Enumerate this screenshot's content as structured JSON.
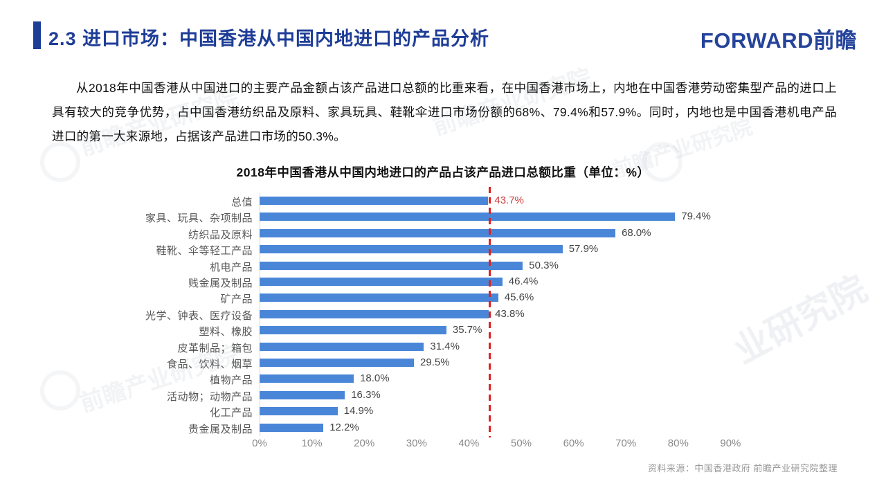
{
  "header": {
    "title": "2.3 进口市场：中国香港从中国内地进口的产品分析",
    "logo_text": "FORWARD前瞻"
  },
  "body_text": {
    "paragraph": "从2018年中国香港从中国进口的主要产品金额占该产品进口总额的比重来看，在中国香港市场上，内地在中国香港劳动密集型产品的进口上具有较大的竞争优势，占中国香港纺织品及原料、家具玩具、鞋靴伞进口市场份额的68%、79.4%和57.9%。同时，内地也是中国香港机电产品进口的第一大来源地，占据该产品进口市场的50.3%。"
  },
  "chart_data": {
    "type": "bar",
    "orientation": "horizontal",
    "title": "2018年中国香港从中国内地进口的产品占该产品进口总额比重（单位：%）",
    "categories": [
      "总值",
      "家具、玩具、杂项制品",
      "纺织品及原料",
      "鞋靴、伞等轻工产品",
      "机电产品",
      "贱金属及制品",
      "矿产品",
      "光学、钟表、医疗设备",
      "塑料、橡胶",
      "皮革制品；箱包",
      "食品、饮料、烟草",
      "植物产品",
      "活动物；动物产品",
      "化工产品",
      "贵金属及制品"
    ],
    "values": [
      43.7,
      79.4,
      68.0,
      57.9,
      50.3,
      46.4,
      45.6,
      43.8,
      35.7,
      31.4,
      29.5,
      18.0,
      16.3,
      14.9,
      12.2
    ],
    "value_label_suffix": "%",
    "highlight_index": 0,
    "bar_color": "#4a86d8",
    "highlight_label_color": "#cf3a3a",
    "reference_line": {
      "value": 43.7,
      "color": "#e02020",
      "style": "dashed"
    },
    "x_ticks": [
      "0%",
      "10%",
      "20%",
      "30%",
      "40%",
      "50%",
      "60%",
      "70%",
      "80%",
      "90%"
    ],
    "x_tick_values": [
      0,
      10,
      20,
      30,
      40,
      50,
      60,
      70,
      80,
      90
    ],
    "xlim": [
      0,
      100
    ],
    "grid": false,
    "legend": "none"
  },
  "footer": {
    "source": "资料来源：中国香港政府  前瞻产业研究院整理"
  },
  "watermark": {
    "text": "前瞻产业研究院",
    "big_text": "业研究院"
  }
}
